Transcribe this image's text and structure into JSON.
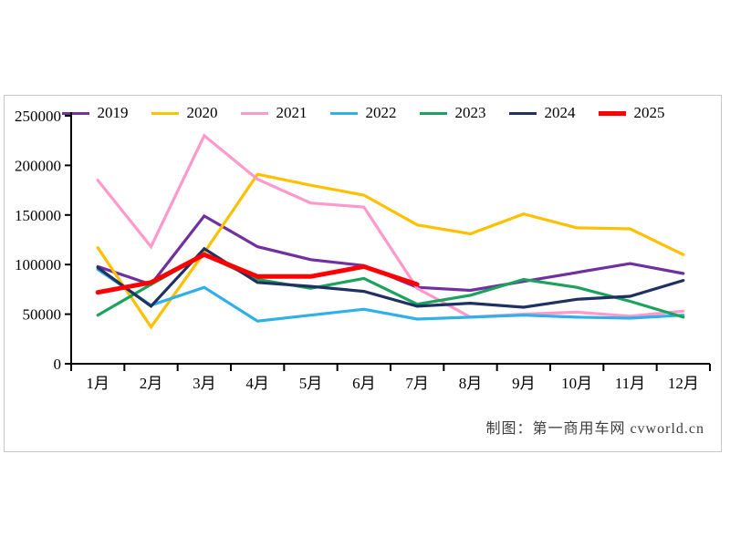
{
  "chart_data": {
    "type": "line",
    "title": "",
    "xlabel": "",
    "ylabel": "",
    "grid": false,
    "legend_position": "top",
    "categories": [
      "1月",
      "2月",
      "3月",
      "4月",
      "5月",
      "6月",
      "7月",
      "8月",
      "9月",
      "10月",
      "11月",
      "12月"
    ],
    "y_axis": {
      "min": 0,
      "max": 250000,
      "step": 50000,
      "tick_labels": [
        "0",
        "50000",
        "100000",
        "150000",
        "200000",
        "250000"
      ]
    },
    "series": [
      {
        "name": "2019",
        "color": "#7030A0",
        "width": 3.2,
        "values": [
          98000,
          80000,
          149000,
          118000,
          105000,
          99000,
          77000,
          74000,
          83000,
          92000,
          101000,
          91000
        ]
      },
      {
        "name": "2020",
        "color": "#FFC000",
        "width": 3.2,
        "values": [
          117000,
          37000,
          112000,
          191000,
          180000,
          170000,
          140000,
          131000,
          151000,
          137000,
          136000,
          110000
        ]
      },
      {
        "name": "2021",
        "color": "#FF99CC",
        "width": 3.2,
        "values": [
          185000,
          118000,
          230000,
          186000,
          162000,
          158000,
          76000,
          47000,
          50000,
          52000,
          48000,
          53000
        ]
      },
      {
        "name": "2022",
        "color": "#2FB0E8",
        "width": 3.2,
        "values": [
          95000,
          59000,
          77000,
          43000,
          49000,
          55000,
          45000,
          47000,
          49000,
          47000,
          46000,
          49000
        ]
      },
      {
        "name": "2023",
        "color": "#1BA35E",
        "width": 3.2,
        "values": [
          49000,
          80000,
          110000,
          85000,
          76000,
          86000,
          60000,
          69000,
          85000,
          77000,
          63000,
          47000
        ]
      },
      {
        "name": "2024",
        "color": "#1F3161",
        "width": 3.2,
        "values": [
          97000,
          58000,
          116000,
          82000,
          78000,
          73000,
          58000,
          61000,
          57000,
          65000,
          68000,
          84000
        ]
      },
      {
        "name": "2025",
        "color": "#FF0000",
        "width": 5,
        "values": [
          72000,
          82000,
          110000,
          88000,
          88000,
          98000,
          80000
        ]
      }
    ]
  },
  "footer": {
    "credit": "制图：第一商用车网 cvworld.cn"
  }
}
